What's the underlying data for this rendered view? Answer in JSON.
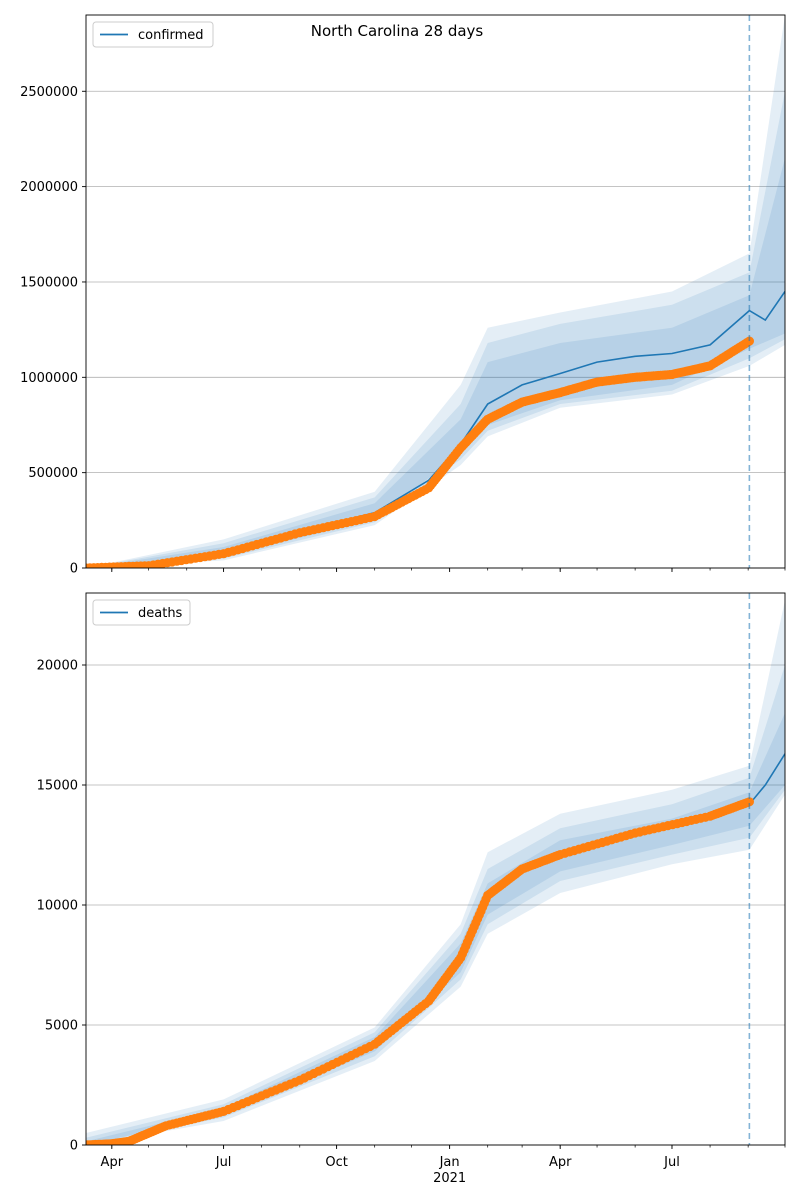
{
  "title": "North Carolina 28 days",
  "colors": {
    "model": "#1f77b4",
    "observed": "#ff7f0e",
    "band": "#1f77b4",
    "grid": "#b0b0b0"
  },
  "chart_data": [
    {
      "type": "line",
      "ylim": [
        0,
        2900000
      ],
      "yticks": [
        "0",
        "500000",
        "1000000",
        "1500000",
        "2000000",
        "2500000"
      ],
      "ytick_values": [
        0,
        500000,
        1000000,
        1500000,
        2000000,
        2500000
      ],
      "legend": {
        "label": "confirmed",
        "placement": "top-left"
      },
      "grid": "y",
      "forecast_start": "2021-09-02",
      "series": [
        {
          "role": "model",
          "x": [
            "2020-03-11",
            "2020-05-01",
            "2020-07-01",
            "2020-09-01",
            "2020-11-01",
            "2020-12-15",
            "2021-01-10",
            "2021-02-01",
            "2021-03-01",
            "2021-04-01",
            "2021-05-01",
            "2021-06-01",
            "2021-07-01",
            "2021-08-01",
            "2021-09-02",
            "2021-09-15",
            "2021-10-01"
          ],
          "y": [
            0,
            12000,
            80000,
            190000,
            290000,
            460000,
            650000,
            860000,
            960000,
            1020000,
            1080000,
            1110000,
            1125000,
            1170000,
            1350000,
            1300000,
            1450000
          ]
        },
        {
          "role": "observed",
          "x": [
            "2020-03-11",
            "2020-05-01",
            "2020-07-01",
            "2020-09-01",
            "2020-11-01",
            "2020-12-15",
            "2021-01-10",
            "2021-02-01",
            "2021-03-01",
            "2021-04-01",
            "2021-05-01",
            "2021-06-01",
            "2021-07-01",
            "2021-08-01",
            "2021-09-02"
          ],
          "y": [
            0,
            12000,
            75000,
            185000,
            270000,
            420000,
            630000,
            780000,
            870000,
            920000,
            975000,
            1000000,
            1015000,
            1060000,
            1190000
          ]
        },
        {
          "role": "band-1",
          "x": [
            "2020-03-11",
            "2020-07-01",
            "2020-11-01",
            "2021-01-10",
            "2021-02-01",
            "2021-04-01",
            "2021-07-01",
            "2021-09-02",
            "2021-10-01"
          ],
          "lower": [
            0,
            60000,
            255000,
            600000,
            750000,
            880000,
            960000,
            1150000,
            1230000
          ],
          "upper": [
            0,
            110000,
            340000,
            780000,
            1080000,
            1180000,
            1260000,
            1430000,
            2150000
          ]
        },
        {
          "role": "band-2",
          "x": [
            "2020-03-11",
            "2020-07-01",
            "2020-11-01",
            "2021-01-10",
            "2021-02-01",
            "2021-04-01",
            "2021-07-01",
            "2021-09-02",
            "2021-10-01"
          ],
          "lower": [
            0,
            50000,
            240000,
            570000,
            720000,
            860000,
            930000,
            1100000,
            1200000
          ],
          "upper": [
            0,
            130000,
            370000,
            860000,
            1180000,
            1280000,
            1380000,
            1550000,
            2500000
          ]
        },
        {
          "role": "band-3",
          "x": [
            "2020-03-11",
            "2020-07-01",
            "2020-11-01",
            "2021-01-10",
            "2021-02-01",
            "2021-04-01",
            "2021-07-01",
            "2021-09-02",
            "2021-10-01"
          ],
          "lower": [
            0,
            40000,
            225000,
            540000,
            690000,
            840000,
            910000,
            1060000,
            1170000
          ],
          "upper": [
            0,
            150000,
            400000,
            960000,
            1260000,
            1340000,
            1450000,
            1650000,
            2900000
          ]
        }
      ]
    },
    {
      "type": "line",
      "ylim": [
        0,
        23000
      ],
      "yticks": [
        "0",
        "5000",
        "10000",
        "15000",
        "20000"
      ],
      "ytick_values": [
        0,
        5000,
        10000,
        15000,
        20000
      ],
      "xticks": [
        "Apr",
        "Jul",
        "Oct",
        "Jan",
        "Apr",
        "Jul"
      ],
      "xtick_dates": [
        "2020-04-01",
        "2020-07-01",
        "2020-10-01",
        "2021-01-01",
        "2021-04-01",
        "2021-07-01"
      ],
      "xtick_year": "2021",
      "xlim": [
        "2020-03-11",
        "2021-10-01"
      ],
      "legend": {
        "label": "deaths",
        "placement": "top-left"
      },
      "grid": "y",
      "forecast_start": "2021-09-02",
      "series": [
        {
          "role": "model",
          "x": [
            "2020-03-11",
            "2020-04-15",
            "2020-05-15",
            "2020-07-01",
            "2020-09-01",
            "2020-11-01",
            "2020-12-15",
            "2021-01-10",
            "2021-02-01",
            "2021-03-01",
            "2021-04-01",
            "2021-06-01",
            "2021-08-01",
            "2021-09-02",
            "2021-09-15",
            "2021-10-01"
          ],
          "y": [
            0,
            150,
            800,
            1400,
            2700,
            4200,
            6000,
            7800,
            10200,
            11500,
            12100,
            13000,
            13700,
            14200,
            15000,
            16300
          ]
        },
        {
          "role": "observed",
          "x": [
            "2020-03-11",
            "2020-04-01",
            "2020-04-15",
            "2020-05-15",
            "2020-07-01",
            "2020-09-01",
            "2020-11-01",
            "2020-12-15",
            "2021-01-10",
            "2021-02-01",
            "2021-03-01",
            "2021-04-01",
            "2021-06-01",
            "2021-08-01",
            "2021-09-02"
          ],
          "y": [
            0,
            50,
            150,
            800,
            1400,
            2700,
            4200,
            6000,
            7800,
            10400,
            11500,
            12100,
            13000,
            13700,
            14300
          ]
        },
        {
          "role": "band-1",
          "x": [
            "2020-03-11",
            "2020-07-01",
            "2020-11-01",
            "2021-01-10",
            "2021-02-01",
            "2021-04-01",
            "2021-07-01",
            "2021-09-02",
            "2021-10-01"
          ],
          "lower": [
            0,
            1250,
            3900,
            7200,
            9600,
            11400,
            12500,
            13300,
            15000
          ],
          "upper": [
            150,
            1550,
            4500,
            8400,
            10900,
            12700,
            13600,
            14700,
            18000
          ]
        },
        {
          "role": "band-2",
          "x": [
            "2020-03-11",
            "2020-07-01",
            "2020-11-01",
            "2021-01-10",
            "2021-02-01",
            "2021-04-01",
            "2021-07-01",
            "2021-09-02",
            "2021-10-01"
          ],
          "lower": [
            0,
            1150,
            3700,
            6900,
            9200,
            11000,
            12100,
            12800,
            14800
          ],
          "upper": [
            300,
            1700,
            4700,
            8800,
            11500,
            13200,
            14200,
            15300,
            20000
          ]
        },
        {
          "role": "band-3",
          "x": [
            "2020-03-11",
            "2020-07-01",
            "2020-11-01",
            "2021-01-10",
            "2021-02-01",
            "2021-04-01",
            "2021-07-01",
            "2021-09-02",
            "2021-10-01"
          ],
          "lower": [
            0,
            1000,
            3500,
            6600,
            8800,
            10500,
            11700,
            12300,
            14600
          ],
          "upper": [
            500,
            1900,
            4900,
            9200,
            12200,
            13800,
            14800,
            15800,
            22700
          ]
        }
      ]
    }
  ]
}
